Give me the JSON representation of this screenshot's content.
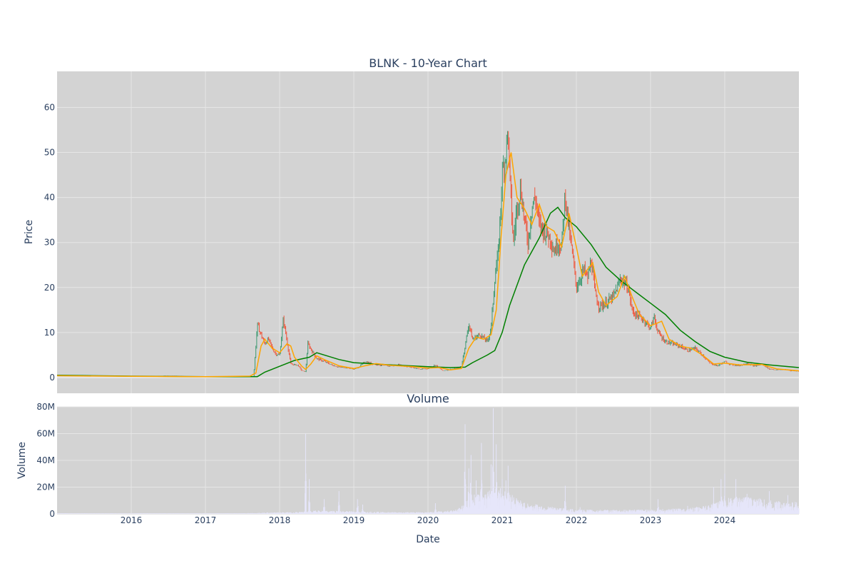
{
  "chart_data": [
    {
      "type": "candlestick",
      "title": "BLNK - 10-Year Chart",
      "ylabel": "Price",
      "xlim": [
        2015.0,
        2025.0
      ],
      "ylim": [
        -3.5,
        68
      ],
      "yticks": [
        0,
        10,
        20,
        30,
        40,
        50,
        60
      ],
      "grid": true,
      "legend": "none",
      "colors": {
        "up": "#2ca02c",
        "down": "#ef553b",
        "ma_short": "#ffa500",
        "ma_long": "#008000",
        "plot_bg": "#d3d3d3"
      },
      "price_close": [
        [
          2015.0,
          0.45
        ],
        [
          2015.5,
          0.35
        ],
        [
          2016.0,
          0.2
        ],
        [
          2016.3,
          0.3
        ],
        [
          2016.5,
          0.45
        ],
        [
          2016.8,
          0.25
        ],
        [
          2017.0,
          0.15
        ],
        [
          2017.3,
          0.2
        ],
        [
          2017.55,
          0.1
        ],
        [
          2017.65,
          0.3
        ],
        [
          2017.7,
          11.8
        ],
        [
          2017.75,
          9.5
        ],
        [
          2017.8,
          7.5
        ],
        [
          2017.85,
          8.5
        ],
        [
          2017.9,
          6.5
        ],
        [
          2017.95,
          5.2
        ],
        [
          2018.0,
          5.0
        ],
        [
          2018.05,
          13.0
        ],
        [
          2018.1,
          8.0
        ],
        [
          2018.15,
          3.0
        ],
        [
          2018.25,
          2.7
        ],
        [
          2018.3,
          1.5
        ],
        [
          2018.35,
          1.3
        ],
        [
          2018.38,
          7.5
        ],
        [
          2018.45,
          5.5
        ],
        [
          2018.5,
          4.2
        ],
        [
          2018.6,
          3.6
        ],
        [
          2018.7,
          2.8
        ],
        [
          2018.8,
          2.3
        ],
        [
          2018.9,
          2.2
        ],
        [
          2019.0,
          1.9
        ],
        [
          2019.05,
          2.1
        ],
        [
          2019.15,
          3.5
        ],
        [
          2019.25,
          3.1
        ],
        [
          2019.4,
          2.6
        ],
        [
          2019.5,
          2.6
        ],
        [
          2019.6,
          2.8
        ],
        [
          2019.7,
          2.5
        ],
        [
          2019.8,
          2.2
        ],
        [
          2019.9,
          1.8
        ],
        [
          2020.0,
          2.0
        ],
        [
          2020.1,
          2.8
        ],
        [
          2020.2,
          1.5
        ],
        [
          2020.3,
          1.8
        ],
        [
          2020.4,
          2.0
        ],
        [
          2020.45,
          2.5
        ],
        [
          2020.5,
          7.0
        ],
        [
          2020.55,
          12.0
        ],
        [
          2020.6,
          8.5
        ],
        [
          2020.7,
          9.5
        ],
        [
          2020.8,
          8.0
        ],
        [
          2020.85,
          11.0
        ],
        [
          2020.9,
          22.0
        ],
        [
          2020.95,
          28.0
        ],
        [
          2021.0,
          45.0
        ],
        [
          2021.05,
          50.0
        ],
        [
          2021.08,
          55.0
        ],
        [
          2021.1,
          45.0
        ],
        [
          2021.15,
          30.0
        ],
        [
          2021.2,
          38.0
        ],
        [
          2021.25,
          42.0
        ],
        [
          2021.3,
          35.0
        ],
        [
          2021.35,
          30.0
        ],
        [
          2021.4,
          38.0
        ],
        [
          2021.45,
          40.0
        ],
        [
          2021.5,
          34.0
        ],
        [
          2021.55,
          33.0
        ],
        [
          2021.6,
          32.0
        ],
        [
          2021.65,
          31.0
        ],
        [
          2021.7,
          28.0
        ],
        [
          2021.75,
          30.0
        ],
        [
          2021.8,
          29.0
        ],
        [
          2021.85,
          41.0
        ],
        [
          2021.9,
          33.0
        ],
        [
          2021.95,
          27.0
        ],
        [
          2022.0,
          20.0
        ],
        [
          2022.05,
          22.0
        ],
        [
          2022.1,
          24.0
        ],
        [
          2022.15,
          22.0
        ],
        [
          2022.2,
          26.0
        ],
        [
          2022.25,
          19.0
        ],
        [
          2022.3,
          16.0
        ],
        [
          2022.35,
          16.0
        ],
        [
          2022.4,
          16.5
        ],
        [
          2022.5,
          18.0
        ],
        [
          2022.6,
          22.0
        ],
        [
          2022.65,
          21.0
        ],
        [
          2022.7,
          20.0
        ],
        [
          2022.75,
          15.0
        ],
        [
          2022.8,
          14.0
        ],
        [
          2022.9,
          13.0
        ],
        [
          2023.0,
          11.0
        ],
        [
          2023.05,
          13.5
        ],
        [
          2023.1,
          10.0
        ],
        [
          2023.2,
          8.0
        ],
        [
          2023.3,
          7.5
        ],
        [
          2023.4,
          7.0
        ],
        [
          2023.5,
          6.0
        ],
        [
          2023.6,
          6.5
        ],
        [
          2023.7,
          5.0
        ],
        [
          2023.8,
          3.2
        ],
        [
          2023.9,
          2.6
        ],
        [
          2024.0,
          3.5
        ],
        [
          2024.1,
          2.8
        ],
        [
          2024.2,
          2.7
        ],
        [
          2024.3,
          3.2
        ],
        [
          2024.4,
          2.5
        ],
        [
          2024.5,
          3.0
        ],
        [
          2024.6,
          1.9
        ],
        [
          2024.7,
          1.7
        ],
        [
          2024.8,
          1.8
        ],
        [
          2024.9,
          1.5
        ],
        [
          2025.0,
          1.4
        ]
      ],
      "ma_short": [
        [
          2015.0,
          0.4
        ],
        [
          2016.0,
          0.25
        ],
        [
          2017.0,
          0.2
        ],
        [
          2017.6,
          0.3
        ],
        [
          2017.68,
          1.0
        ],
        [
          2017.75,
          7.0
        ],
        [
          2017.8,
          8.5
        ],
        [
          2017.9,
          6.5
        ],
        [
          2018.0,
          5.5
        ],
        [
          2018.1,
          7.5
        ],
        [
          2018.15,
          7.0
        ],
        [
          2018.2,
          4.5
        ],
        [
          2018.3,
          2.5
        ],
        [
          2018.35,
          1.8
        ],
        [
          2018.42,
          3.0
        ],
        [
          2018.5,
          4.8
        ],
        [
          2018.6,
          4.0
        ],
        [
          2018.8,
          2.6
        ],
        [
          2019.0,
          2.0
        ],
        [
          2019.15,
          2.6
        ],
        [
          2019.3,
          3.1
        ],
        [
          2019.5,
          2.7
        ],
        [
          2019.8,
          2.4
        ],
        [
          2020.0,
          2.1
        ],
        [
          2020.15,
          2.2
        ],
        [
          2020.3,
          1.7
        ],
        [
          2020.45,
          2.0
        ],
        [
          2020.55,
          6.5
        ],
        [
          2020.65,
          9.0
        ],
        [
          2020.75,
          8.5
        ],
        [
          2020.85,
          9.5
        ],
        [
          2020.92,
          15.0
        ],
        [
          2020.98,
          30.0
        ],
        [
          2021.05,
          45.0
        ],
        [
          2021.12,
          50.0
        ],
        [
          2021.2,
          40.0
        ],
        [
          2021.3,
          37.5
        ],
        [
          2021.4,
          34.0
        ],
        [
          2021.5,
          38.5
        ],
        [
          2021.6,
          33.5
        ],
        [
          2021.7,
          32.5
        ],
        [
          2021.8,
          29.0
        ],
        [
          2021.9,
          36.5
        ],
        [
          2022.0,
          29.0
        ],
        [
          2022.08,
          22.5
        ],
        [
          2022.15,
          24.0
        ],
        [
          2022.22,
          25.5
        ],
        [
          2022.3,
          19.0
        ],
        [
          2022.4,
          16.0
        ],
        [
          2022.55,
          18.0
        ],
        [
          2022.65,
          22.5
        ],
        [
          2022.75,
          18.0
        ],
        [
          2022.85,
          14.0
        ],
        [
          2023.0,
          11.5
        ],
        [
          2023.15,
          12.5
        ],
        [
          2023.25,
          8.5
        ],
        [
          2023.4,
          7.0
        ],
        [
          2023.55,
          6.5
        ],
        [
          2023.7,
          5.0
        ],
        [
          2023.85,
          3.0
        ],
        [
          2024.0,
          3.2
        ],
        [
          2024.2,
          2.8
        ],
        [
          2024.5,
          2.9
        ],
        [
          2024.7,
          1.9
        ],
        [
          2025.0,
          1.5
        ]
      ],
      "ma_long": [
        [
          2015.0,
          0.5
        ],
        [
          2016.0,
          0.3
        ],
        [
          2017.0,
          0.2
        ],
        [
          2017.7,
          0.2
        ],
        [
          2017.8,
          1.2
        ],
        [
          2018.0,
          2.5
        ],
        [
          2018.2,
          3.8
        ],
        [
          2018.4,
          4.5
        ],
        [
          2018.5,
          5.5
        ],
        [
          2018.8,
          4.0
        ],
        [
          2019.0,
          3.3
        ],
        [
          2019.5,
          2.8
        ],
        [
          2020.0,
          2.4
        ],
        [
          2020.3,
          2.2
        ],
        [
          2020.5,
          2.3
        ],
        [
          2020.6,
          3.3
        ],
        [
          2020.8,
          5.0
        ],
        [
          2020.9,
          6.0
        ],
        [
          2021.0,
          10.0
        ],
        [
          2021.1,
          16.0
        ],
        [
          2021.3,
          25.0
        ],
        [
          2021.5,
          31.0
        ],
        [
          2021.65,
          36.5
        ],
        [
          2021.75,
          37.8
        ],
        [
          2021.85,
          35.5
        ],
        [
          2022.0,
          33.5
        ],
        [
          2022.2,
          29.5
        ],
        [
          2022.4,
          24.5
        ],
        [
          2022.6,
          21.5
        ],
        [
          2022.8,
          19.0
        ],
        [
          2023.0,
          16.5
        ],
        [
          2023.2,
          14.0
        ],
        [
          2023.4,
          10.5
        ],
        [
          2023.6,
          8.0
        ],
        [
          2023.8,
          5.8
        ],
        [
          2024.0,
          4.5
        ],
        [
          2024.3,
          3.4
        ],
        [
          2024.6,
          2.8
        ],
        [
          2025.0,
          2.2
        ]
      ]
    },
    {
      "type": "bar",
      "title": "Volume",
      "xlabel": "Date",
      "ylabel": "Volume",
      "xlim": [
        2015.0,
        2025.0
      ],
      "ylim": [
        0,
        80000000
      ],
      "ytick_values": [
        0,
        20000000,
        40000000,
        60000000,
        80000000
      ],
      "ytick_labels": [
        "0",
        "20M",
        "40M",
        "60M",
        "80M"
      ],
      "xtick_values": [
        2016,
        2017,
        2018,
        2019,
        2020,
        2021,
        2022,
        2023,
        2024
      ],
      "xtick_labels": [
        "2016",
        "2017",
        "2018",
        "2019",
        "2020",
        "2021",
        "2022",
        "2023",
        "2024"
      ],
      "color": "#e6e6fa",
      "spikes": [
        [
          2018.35,
          60000000
        ],
        [
          2018.4,
          26000000
        ],
        [
          2018.6,
          11000000
        ],
        [
          2018.8,
          17000000
        ],
        [
          2019.05,
          11000000
        ],
        [
          2019.12,
          7000000
        ],
        [
          2020.1,
          8000000
        ],
        [
          2020.5,
          67000000
        ],
        [
          2020.55,
          34000000
        ],
        [
          2020.58,
          44000000
        ],
        [
          2020.65,
          25000000
        ],
        [
          2020.72,
          53000000
        ],
        [
          2020.85,
          37000000
        ],
        [
          2020.88,
          79000000
        ],
        [
          2020.92,
          52000000
        ],
        [
          2021.0,
          26000000
        ],
        [
          2021.05,
          25000000
        ],
        [
          2021.08,
          36000000
        ],
        [
          2021.15,
          10000000
        ],
        [
          2021.3,
          8000000
        ],
        [
          2021.85,
          21000000
        ],
        [
          2022.05,
          5000000
        ],
        [
          2023.1,
          11000000
        ],
        [
          2023.5,
          6000000
        ],
        [
          2023.85,
          20000000
        ],
        [
          2023.95,
          26000000
        ],
        [
          2024.0,
          30000000
        ],
        [
          2024.15,
          26000000
        ],
        [
          2024.3,
          15000000
        ],
        [
          2024.6,
          17000000
        ],
        [
          2024.85,
          14000000
        ],
        [
          2024.95,
          9000000
        ]
      ],
      "baseline": [
        [
          2015.0,
          300000
        ],
        [
          2017.5,
          300000
        ],
        [
          2017.8,
          600000
        ],
        [
          2018.2,
          800000
        ],
        [
          2018.5,
          1500000
        ],
        [
          2019.0,
          1200000
        ],
        [
          2019.5,
          800000
        ],
        [
          2020.0,
          800000
        ],
        [
          2020.4,
          2000000
        ],
        [
          2020.6,
          9000000
        ],
        [
          2021.0,
          12000000
        ],
        [
          2021.3,
          5000000
        ],
        [
          2021.7,
          3000000
        ],
        [
          2022.0,
          2000000
        ],
        [
          2022.5,
          1800000
        ],
        [
          2023.0,
          2000000
        ],
        [
          2023.5,
          2500000
        ],
        [
          2023.8,
          4000000
        ],
        [
          2024.0,
          7000000
        ],
        [
          2024.3,
          8000000
        ],
        [
          2024.6,
          6000000
        ],
        [
          2025.0,
          5000000
        ]
      ]
    }
  ]
}
